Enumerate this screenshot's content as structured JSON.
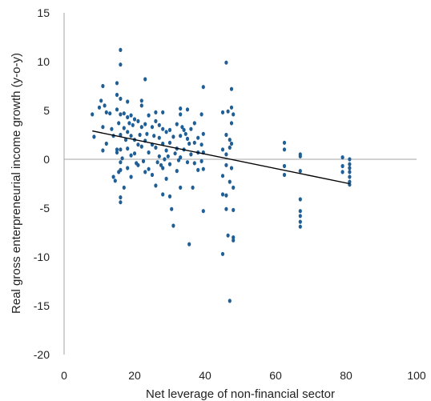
{
  "colors": {
    "point": "#1f5f96",
    "trend": "#000000",
    "axis": "#a6a6a6",
    "text": "#222222"
  },
  "chart_data": {
    "type": "scatter",
    "xlabel": "Net leverage of non-financial sector",
    "ylabel": "Real gross enterpreneurial income growth (y-o-y)",
    "xlim": [
      0,
      100
    ],
    "ylim": [
      -20,
      15
    ],
    "xticks": [
      0,
      20,
      40,
      60,
      80,
      100
    ],
    "yticks": [
      15,
      10,
      5,
      0,
      -5,
      -10,
      -15,
      -20
    ],
    "grid": false,
    "legend": "none",
    "trendline": {
      "type": "linear",
      "x": [
        8,
        81
      ],
      "y": [
        2.9,
        -2.5
      ]
    },
    "points": [
      [
        8,
        4.6
      ],
      [
        8.5,
        2.3
      ],
      [
        10,
        5.3
      ],
      [
        10.5,
        6.0
      ],
      [
        11,
        7.5
      ],
      [
        11,
        3.3
      ],
      [
        11.5,
        5.5
      ],
      [
        12,
        4.8
      ],
      [
        12,
        1.6
      ],
      [
        11,
        0.9
      ],
      [
        13,
        4.7
      ],
      [
        13.5,
        3.1
      ],
      [
        14,
        2.4
      ],
      [
        14,
        -1.8
      ],
      [
        14.5,
        -2.2
      ],
      [
        15,
        7.8
      ],
      [
        15,
        6.6
      ],
      [
        15,
        5.1
      ],
      [
        15,
        1.0
      ],
      [
        15,
        0.7
      ],
      [
        15.5,
        3.7
      ],
      [
        15.5,
        -1.3
      ],
      [
        16,
        11.2
      ],
      [
        16,
        9.7
      ],
      [
        16,
        6.2
      ],
      [
        16,
        4.6
      ],
      [
        16,
        2.5
      ],
      [
        16,
        1.0
      ],
      [
        16,
        -0.3
      ],
      [
        16,
        -1.1
      ],
      [
        16,
        -3.9
      ],
      [
        16,
        -4.4
      ],
      [
        16.5,
        0.1
      ],
      [
        17,
        4.7
      ],
      [
        17,
        3.2
      ],
      [
        17,
        -2.9
      ],
      [
        17.5,
        2.0
      ],
      [
        18,
        5.9
      ],
      [
        18,
        4.3
      ],
      [
        18,
        2.8
      ],
      [
        18,
        1.1
      ],
      [
        18,
        -0.9
      ],
      [
        18.5,
        3.7
      ],
      [
        19,
        4.5
      ],
      [
        19,
        2.4
      ],
      [
        19,
        0.4
      ],
      [
        19,
        -1.8
      ],
      [
        19.5,
        3.5
      ],
      [
        20,
        4.1
      ],
      [
        20,
        2.0
      ],
      [
        20,
        0.6
      ],
      [
        20.5,
        -0.4
      ],
      [
        21,
        3.9
      ],
      [
        21,
        1.5
      ],
      [
        21,
        -0.6
      ],
      [
        21.5,
        2.5
      ],
      [
        22,
        6.0
      ],
      [
        22,
        5.5
      ],
      [
        22,
        3.3
      ],
      [
        22,
        1.3
      ],
      [
        22.5,
        -0.2
      ],
      [
        23,
        8.2
      ],
      [
        23,
        3.6
      ],
      [
        23,
        1.9
      ],
      [
        23,
        -1.3
      ],
      [
        23.5,
        2.6
      ],
      [
        24,
        4.5
      ],
      [
        24,
        0.7
      ],
      [
        24,
        -1.0
      ],
      [
        25,
        3.3
      ],
      [
        25,
        1.5
      ],
      [
        25,
        -1.6
      ],
      [
        25.5,
        2.4
      ],
      [
        26,
        4.8
      ],
      [
        26,
        3.9
      ],
      [
        26,
        1.2
      ],
      [
        26,
        -2.7
      ],
      [
        26.5,
        -0.3
      ],
      [
        27,
        3.5
      ],
      [
        27,
        2.2
      ],
      [
        27,
        0.3
      ],
      [
        27.5,
        -0.6
      ],
      [
        28,
        4.8
      ],
      [
        28,
        3.1
      ],
      [
        28,
        1.6
      ],
      [
        28,
        -0.9
      ],
      [
        28,
        -3.6
      ],
      [
        28.5,
        0.0
      ],
      [
        29,
        2.8
      ],
      [
        29,
        0.9
      ],
      [
        29,
        -2.0
      ],
      [
        29.5,
        0.3
      ],
      [
        30,
        3.0
      ],
      [
        30,
        1.7
      ],
      [
        30,
        -0.5
      ],
      [
        30,
        -3.8
      ],
      [
        30.5,
        -5.1
      ],
      [
        31,
        2.3
      ],
      [
        31,
        -6.8
      ],
      [
        31.5,
        0.6
      ],
      [
        32,
        3.6
      ],
      [
        32,
        1.1
      ],
      [
        32,
        -1.2
      ],
      [
        32.5,
        -0.1
      ],
      [
        33,
        5.2
      ],
      [
        33,
        4.6
      ],
      [
        33,
        2.4
      ],
      [
        33,
        0.2
      ],
      [
        33,
        -2.9
      ],
      [
        33.5,
        3.3
      ],
      [
        34,
        3.0
      ],
      [
        34,
        1.0
      ],
      [
        34.5,
        2.6
      ],
      [
        35,
        5.1
      ],
      [
        35,
        2.1
      ],
      [
        35,
        -0.3
      ],
      [
        35.5,
        1.6
      ],
      [
        35.5,
        -8.7
      ],
      [
        36,
        3.1
      ],
      [
        36,
        0.5
      ],
      [
        36.5,
        -2.9
      ],
      [
        37,
        3.7
      ],
      [
        37,
        1.7
      ],
      [
        37,
        -0.4
      ],
      [
        38,
        2.2
      ],
      [
        38,
        0.7
      ],
      [
        38,
        -1.1
      ],
      [
        39,
        4.6
      ],
      [
        39,
        1.5
      ],
      [
        39,
        -0.2
      ],
      [
        39.5,
        7.4
      ],
      [
        39.5,
        2.6
      ],
      [
        39.5,
        0.7
      ],
      [
        39.5,
        -1.0
      ],
      [
        39.5,
        -5.3
      ],
      [
        45,
        4.8
      ],
      [
        45,
        1.0
      ],
      [
        45,
        -1.7
      ],
      [
        45,
        -3.6
      ],
      [
        45,
        -9.7
      ],
      [
        46,
        9.9
      ],
      [
        46,
        2.5
      ],
      [
        46,
        0.5
      ],
      [
        46,
        -0.6
      ],
      [
        46,
        -3.7
      ],
      [
        46,
        -5.1
      ],
      [
        46.5,
        4.9
      ],
      [
        46.5,
        -7.8
      ],
      [
        47,
        2.0
      ],
      [
        47,
        1.2
      ],
      [
        47,
        -2.3
      ],
      [
        47,
        -14.5
      ],
      [
        47.5,
        7.2
      ],
      [
        47.5,
        5.3
      ],
      [
        47.5,
        3.7
      ],
      [
        47.5,
        1.6
      ],
      [
        47.5,
        -0.9
      ],
      [
        48,
        4.6
      ],
      [
        48,
        -2.9
      ],
      [
        48,
        -5.2
      ],
      [
        48,
        -8.0
      ],
      [
        48,
        -8.3
      ],
      [
        62.5,
        1.7
      ],
      [
        62.5,
        1.0
      ],
      [
        62.5,
        -0.7
      ],
      [
        62.5,
        -1.6
      ],
      [
        67,
        0.5
      ],
      [
        67,
        0.3
      ],
      [
        67,
        -1.2
      ],
      [
        67,
        -4.1
      ],
      [
        67,
        -5.3
      ],
      [
        67,
        -5.8
      ],
      [
        67,
        -6.4
      ],
      [
        67,
        -6.9
      ],
      [
        79,
        0.2
      ],
      [
        79,
        -0.7
      ],
      [
        79,
        -1.3
      ],
      [
        81,
        0.0
      ],
      [
        81,
        -0.5
      ],
      [
        81,
        -0.9
      ],
      [
        81,
        -1.3
      ],
      [
        81,
        -1.8
      ],
      [
        81,
        -2.3
      ],
      [
        81,
        -2.6
      ]
    ]
  }
}
